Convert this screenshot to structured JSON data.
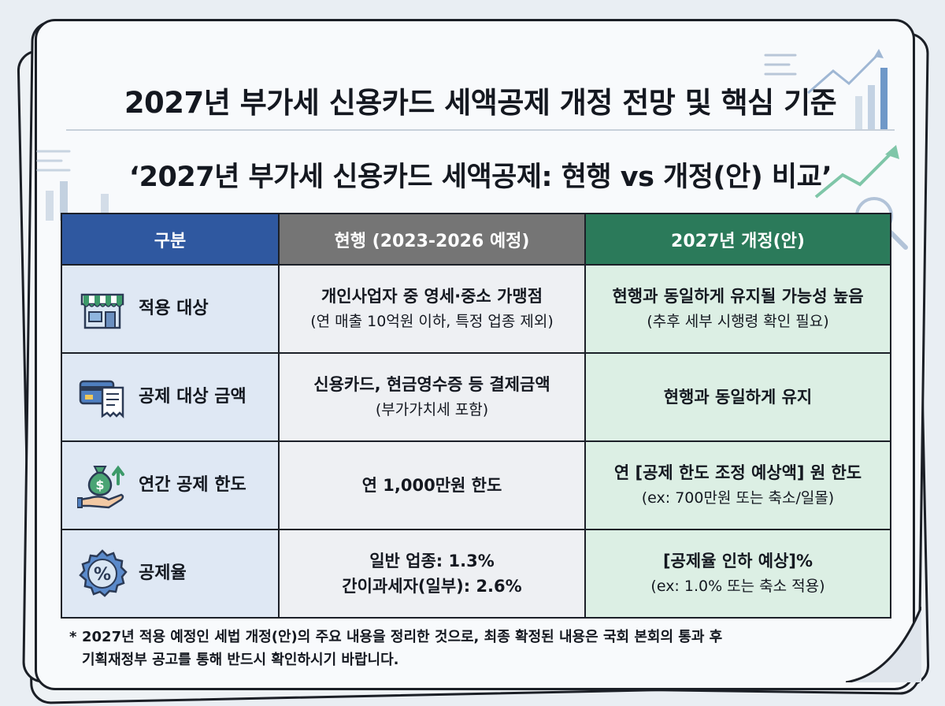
{
  "title": "2027년 부가세 신용카드 세액공제 개정 전망 및 핵심 기준",
  "subtitle": "‘2027년 부가세 신용카드 세액공제: 현행 vs 개정(안) 비교’",
  "table": {
    "headers": [
      "구분",
      "현행 (2023-2026 예정)",
      "2027년 개정(안)"
    ],
    "rows": [
      {
        "icon": "storefront-icon",
        "category": "적용 대상",
        "current": [
          "개인사업자 중 영세·중소 가맹점",
          "(연 매출 10억원 이하, 특정 업종 제외)"
        ],
        "revised": [
          "현행과 동일하게 유지될 가능성 높음",
          "(추후 세부 시행령 확인 필요)"
        ]
      },
      {
        "icon": "card-receipt-icon",
        "category": "공제 대상 금액",
        "current": [
          "신용카드, 현금영수증 등 결제금액",
          "(부가가치세 포함)"
        ],
        "revised": [
          "현행과 동일하게 유지",
          ""
        ]
      },
      {
        "icon": "money-bag-hand-icon",
        "category": "연간 공제 한도",
        "current": [
          "연 1,000만원 한도",
          ""
        ],
        "revised": [
          "연 [공제 한도 조정 예상액] 원 한도",
          "(ex: 700만원 또는 축소/일몰)"
        ]
      },
      {
        "icon": "percent-badge-icon",
        "category": "공제율",
        "current": [
          "일반 업종: 1.3%",
          "간이과세자(일부): 2.6%"
        ],
        "revised": [
          "[공제율 인하 예상]%",
          "(ex: 1.0% 또는 축소 적용)"
        ]
      }
    ]
  },
  "footnote": {
    "marker": "*",
    "line1": "2027년 적용 예정인 세법 개정(안)의 주요 내용을 정리한 것으로, 최종 확정된 내용은 국회 본회의 통과 후",
    "line2": "기획재정부 공고를 통해 반드시 확인하시기 바랍니다."
  },
  "colors": {
    "header_category": "#2f58a0",
    "header_current": "#757575",
    "header_revised": "#2b7a5a",
    "cell_category": "#dfe8f4",
    "cell_current": "#eef0f3",
    "cell_revised": "#dcefe4"
  }
}
